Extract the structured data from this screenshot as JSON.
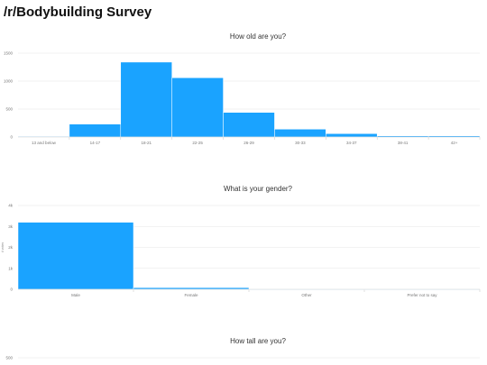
{
  "page": {
    "title": "/r/Bodybuilding Survey"
  },
  "colors": {
    "bar": "#1aa3ff",
    "bar_separator": "#ffffff"
  },
  "chart_data": [
    {
      "type": "bar",
      "title": "How old are you?",
      "xlabel": "",
      "ylabel": "",
      "categories": [
        "13 and below",
        "14-17",
        "18-21",
        "22-25",
        "26-29",
        "30-33",
        "34-37",
        "38-41",
        "42+"
      ],
      "values": [
        10,
        230,
        1340,
        1060,
        440,
        140,
        60,
        20,
        20
      ],
      "ylim": [
        0,
        1500
      ],
      "yticks": [
        0,
        500,
        1000,
        1500
      ],
      "ytick_labels": [
        "0",
        "500",
        "1000",
        "1500"
      ],
      "grid": true,
      "legend": "none"
    },
    {
      "type": "bar",
      "title": "What is your gender?",
      "xlabel": "",
      "ylabel": "# votes",
      "categories": [
        "Male",
        "Female",
        "Other",
        "Prefer not to say"
      ],
      "values": [
        3200,
        80,
        10,
        10
      ],
      "ylim": [
        0,
        4000
      ],
      "yticks": [
        0,
        1000,
        2000,
        3000,
        4000
      ],
      "ytick_labels": [
        "0",
        "1k",
        "2k",
        "3k",
        "4k"
      ],
      "grid": true,
      "legend": "none"
    },
    {
      "type": "bar",
      "title": "How tall are you?",
      "xlabel": "",
      "ylabel": "",
      "categories": [],
      "values": [],
      "yticks": [
        500
      ],
      "ytick_labels": [
        "500"
      ],
      "grid": true,
      "legend": "none"
    }
  ]
}
